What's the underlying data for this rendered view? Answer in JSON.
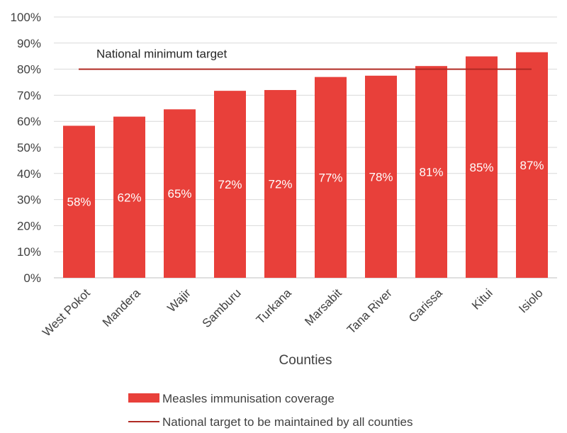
{
  "chart_data": {
    "type": "bar",
    "categories": [
      "West Pokot",
      "Mandera",
      "Wajir",
      "Samburu",
      "Turkana",
      "Marsabit",
      "Tana River",
      "Garissa",
      "Kitui",
      "Isiolo"
    ],
    "series": [
      {
        "name": "Measles immunisation coverage",
        "values": [
          58.3,
          61.8,
          64.6,
          71.7,
          72.0,
          77.0,
          77.5,
          81.2,
          84.9,
          86.5
        ],
        "labels": [
          "58%",
          "62%",
          "65%",
          "72%",
          "72%",
          "77%",
          "78%",
          "81%",
          "85%",
          "87%"
        ],
        "color": "#e8403a"
      }
    ],
    "target": {
      "name": "National target to be maintained by all counties",
      "value": 80,
      "annotation": "National minimum target",
      "color": "#b02a24"
    },
    "xlabel": "Counties",
    "ylabel": "",
    "ylim": [
      0,
      100
    ],
    "yticks": [
      "0%",
      "10%",
      "20%",
      "30%",
      "40%",
      "50%",
      "60%",
      "70%",
      "80%",
      "90%",
      "100%"
    ],
    "grid": true,
    "legend_position": "bottom"
  }
}
